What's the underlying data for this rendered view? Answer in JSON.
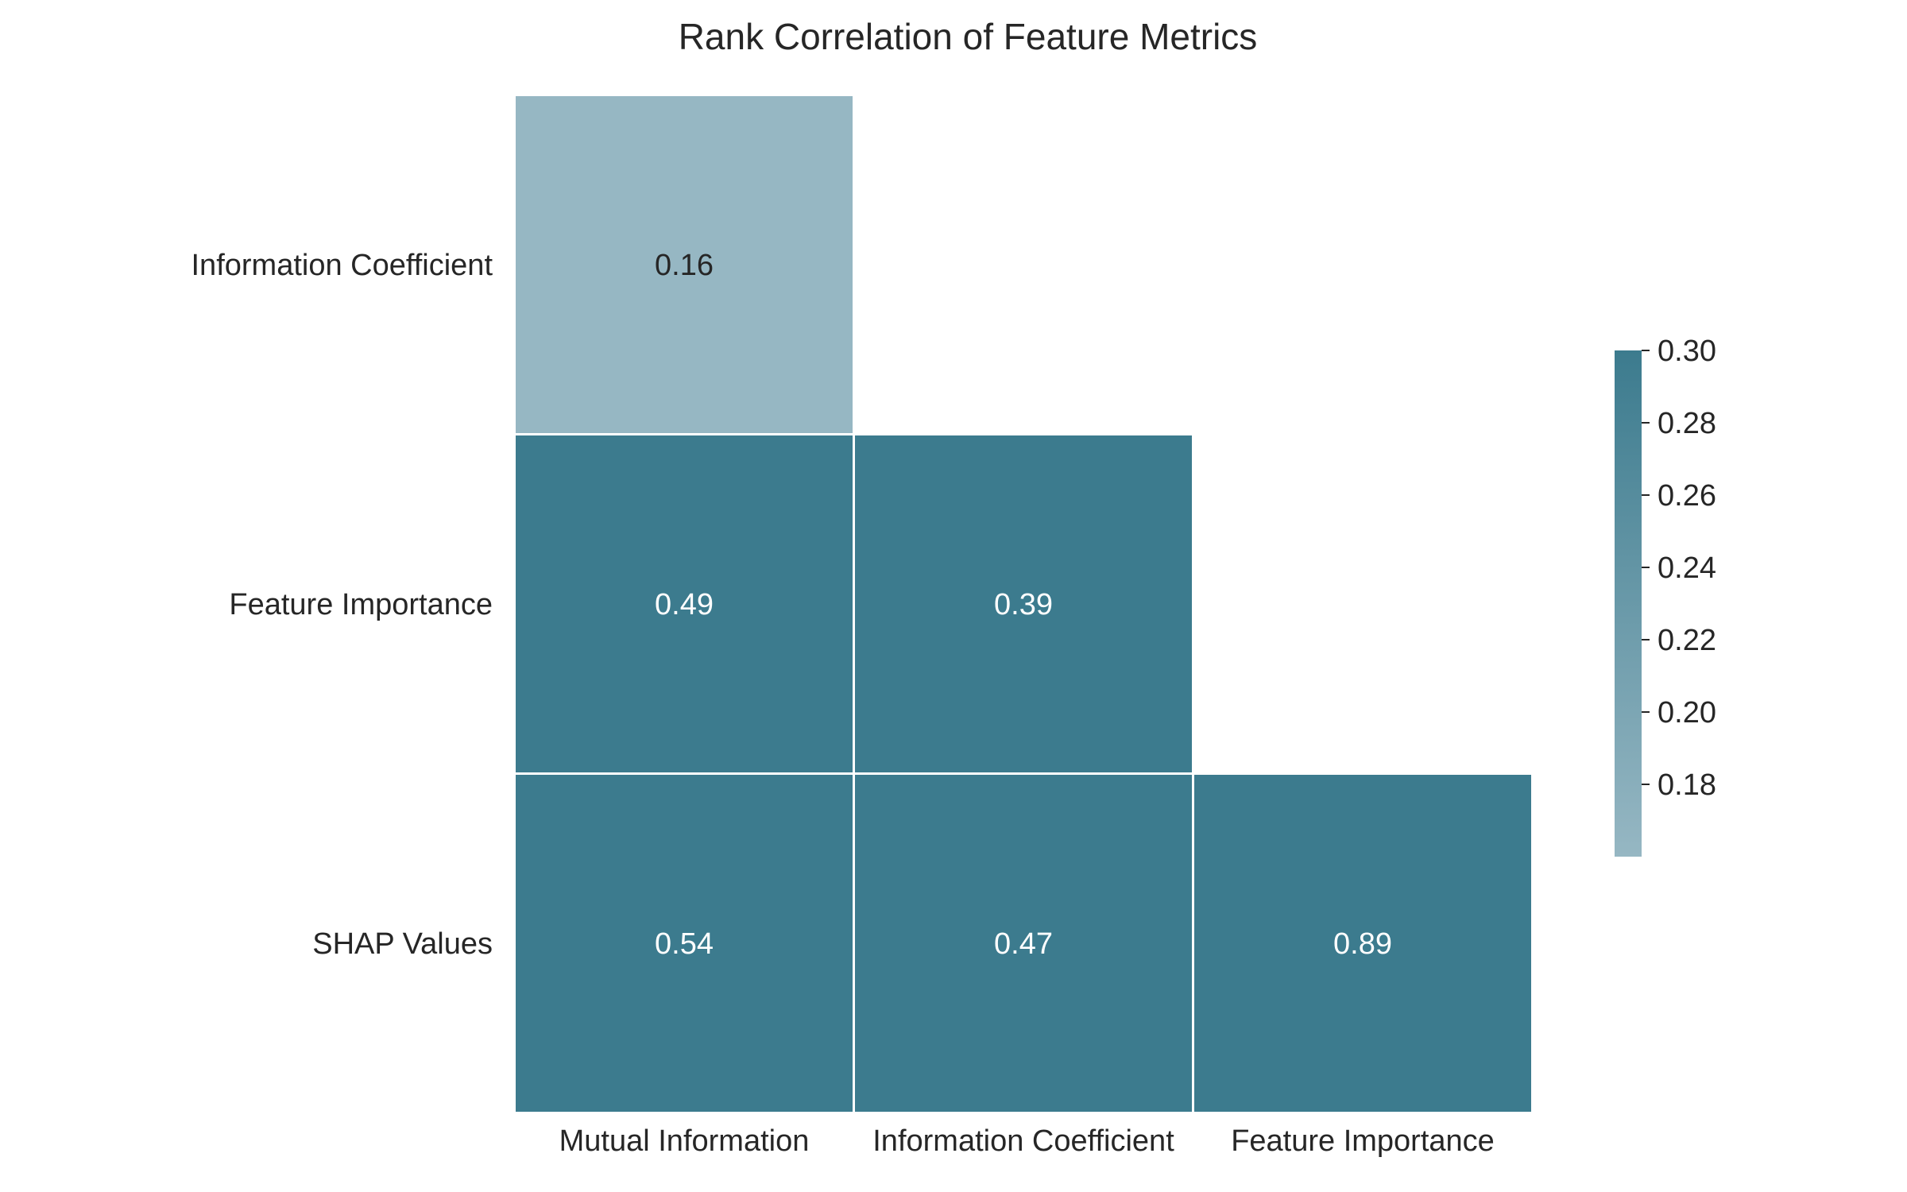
{
  "chart_data": {
    "type": "heatmap",
    "title": "Rank Correlation of Feature Metrics",
    "row_labels": [
      "Information Coefficient",
      "Feature Importance",
      "SHAP Values"
    ],
    "col_labels": [
      "Mutual Information",
      "Information Coefficient",
      "Feature Importance"
    ],
    "matrix": [
      [
        0.16,
        null,
        null
      ],
      [
        0.49,
        0.39,
        null
      ],
      [
        0.54,
        0.47,
        0.89
      ]
    ],
    "value_labels": [
      [
        "0.16",
        null,
        null
      ],
      [
        "0.49",
        "0.39",
        null
      ],
      [
        "0.54",
        "0.47",
        "0.89"
      ]
    ],
    "mask": "upper triangle",
    "colorbar": {
      "vmin": 0.16,
      "vmax": 0.3,
      "ticks": [
        0.18,
        0.2,
        0.22,
        0.24,
        0.26,
        0.28,
        0.3
      ],
      "tick_labels": [
        "0.18",
        "0.20",
        "0.22",
        "0.24",
        "0.26",
        "0.28",
        "0.30"
      ],
      "color_low": "#96b7c3",
      "color_high": "#3c7b8e"
    },
    "text_color_light": "#ffffff",
    "text_color_dark": "#262626",
    "grid": false,
    "legend": "colorbar-right"
  }
}
